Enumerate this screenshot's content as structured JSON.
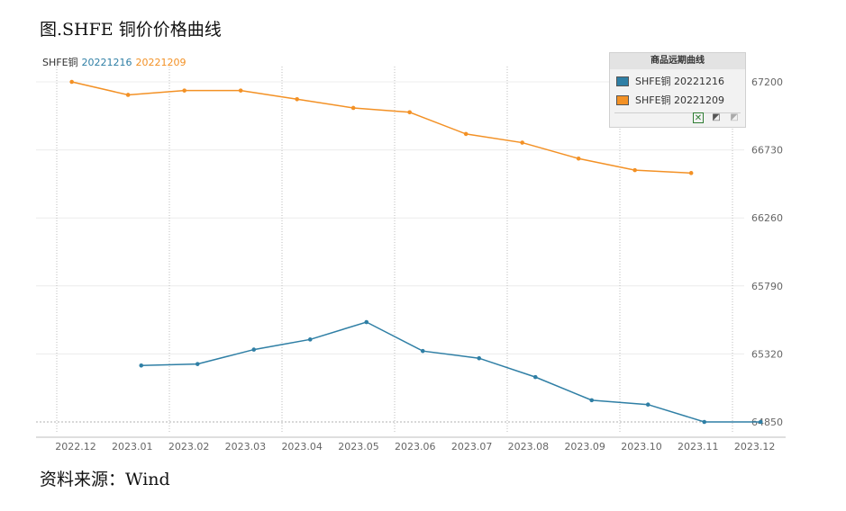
{
  "title": "图.SHFE 铜价价格曲线",
  "source": "资料来源：Wind",
  "series_header": {
    "prefix": "SHFE铜",
    "s1": "20221216",
    "s2": "20221209"
  },
  "legend": {
    "title": "商品远期曲线",
    "items": [
      "SHFE铜 20221216",
      "SHFE铜 20221209"
    ],
    "tools": [
      "excel-icon",
      "chart-edit-icon",
      "chart-dim-icon"
    ]
  },
  "colors": {
    "series1": "#2f7fa5",
    "series2": "#f39125",
    "grid": "#c8c8c8",
    "axis_text": "#666666"
  },
  "chart_data": {
    "type": "line",
    "x": [
      "2022.12",
      "2023.01",
      "2023.02",
      "2023.03",
      "2023.04",
      "2023.05",
      "2023.06",
      "2023.07",
      "2023.08",
      "2023.09",
      "2023.10",
      "2023.11",
      "2023.12"
    ],
    "yticks": [
      64850,
      65320,
      65790,
      66260,
      66730,
      67200
    ],
    "ylim": [
      64780,
      67280
    ],
    "grid": true,
    "legend_position": "top-right",
    "series": [
      {
        "name": "SHFE铜 20221216",
        "color": "#2f7fa5",
        "points": [
          [
            "2022-12-16",
            null
          ],
          [
            "2023-01-16",
            65240
          ],
          [
            "2023-02-16",
            65250
          ],
          [
            "2023-03-16",
            65350
          ],
          [
            "2023-04-16",
            65420
          ],
          [
            "2023-05-16",
            65540
          ],
          [
            "2023-06-16",
            65340
          ],
          [
            "2023-07-16",
            65290
          ],
          [
            "2023-08-16",
            65160
          ],
          [
            "2023-09-16",
            65000
          ],
          [
            "2023-10-16",
            64970
          ],
          [
            "2023-11-16",
            64850
          ],
          [
            "2023-12-16",
            64850
          ]
        ]
      },
      {
        "name": "SHFE铜 20221209",
        "color": "#f39125",
        "points": [
          [
            "2022-12-09",
            67200
          ],
          [
            "2023-01-09",
            67110
          ],
          [
            "2023-02-09",
            67140
          ],
          [
            "2023-03-09",
            67140
          ],
          [
            "2023-04-09",
            67080
          ],
          [
            "2023-05-09",
            67020
          ],
          [
            "2023-06-09",
            66990
          ],
          [
            "2023-07-09",
            66840
          ],
          [
            "2023-08-09",
            66780
          ],
          [
            "2023-09-09",
            66670
          ],
          [
            "2023-10-09",
            66590
          ],
          [
            "2023-11-09",
            66570
          ]
        ]
      }
    ]
  }
}
